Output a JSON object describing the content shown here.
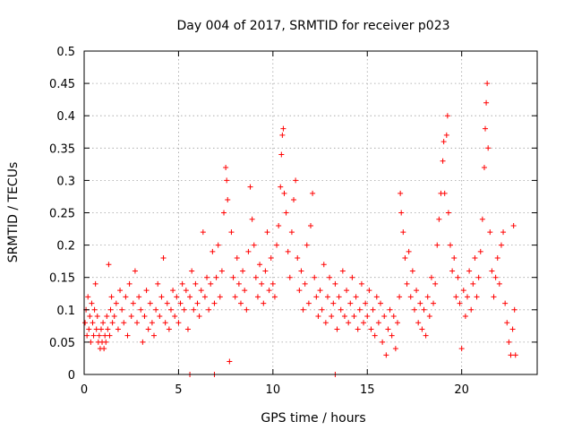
{
  "chart_data": {
    "type": "scatter",
    "title": "Day 004 of 2017, SRMTID for receiver p023",
    "xlabel": "GPS time / hours",
    "ylabel": "SRMTID / TECUs",
    "xlim": [
      0,
      24
    ],
    "ylim": [
      0,
      0.5
    ],
    "xticks": [
      0,
      5,
      10,
      15,
      20
    ],
    "yticks": [
      0,
      0.05,
      0.1,
      0.15,
      0.2,
      0.25,
      0.3,
      0.35,
      0.4,
      0.45,
      0.5
    ],
    "xtick_labels": [
      "0",
      "5",
      "10",
      "15",
      "20"
    ],
    "ytick_labels": [
      "0",
      "0.05",
      "0.1",
      "0.15",
      "0.2",
      "0.25",
      "0.3",
      "0.35",
      "0.4",
      "0.45",
      "0.5"
    ],
    "grid": true,
    "marker": "+",
    "color": "#ff0000",
    "series": [
      {
        "name": "SRMTID",
        "points": [
          [
            0.05,
            0.08
          ],
          [
            0.1,
            0.1
          ],
          [
            0.15,
            0.06
          ],
          [
            0.2,
            0.12
          ],
          [
            0.25,
            0.07
          ],
          [
            0.3,
            0.09
          ],
          [
            0.35,
            0.05
          ],
          [
            0.4,
            0.11
          ],
          [
            0.45,
            0.08
          ],
          [
            0.5,
            0.06
          ],
          [
            0.55,
            0.1
          ],
          [
            0.6,
            0.14
          ],
          [
            0.65,
            0.07
          ],
          [
            0.7,
            0.09
          ],
          [
            0.75,
            0.05
          ],
          [
            0.8,
            0.06
          ],
          [
            0.85,
            0.04
          ],
          [
            0.9,
            0.07
          ],
          [
            0.95,
            0.05
          ],
          [
            1.0,
            0.08
          ],
          [
            1.05,
            0.04
          ],
          [
            1.1,
            0.06
          ],
          [
            1.15,
            0.05
          ],
          [
            1.2,
            0.09
          ],
          [
            1.25,
            0.07
          ],
          [
            1.3,
            0.17
          ],
          [
            1.35,
            0.06
          ],
          [
            1.4,
            0.1
          ],
          [
            1.45,
            0.12
          ],
          [
            1.5,
            0.08
          ],
          [
            1.6,
            0.09
          ],
          [
            1.7,
            0.11
          ],
          [
            1.8,
            0.07
          ],
          [
            1.9,
            0.13
          ],
          [
            2.0,
            0.1
          ],
          [
            2.1,
            0.08
          ],
          [
            2.2,
            0.12
          ],
          [
            2.3,
            0.06
          ],
          [
            2.4,
            0.14
          ],
          [
            2.5,
            0.09
          ],
          [
            2.6,
            0.11
          ],
          [
            2.7,
            0.16
          ],
          [
            2.8,
            0.08
          ],
          [
            2.9,
            0.12
          ],
          [
            3.0,
            0.1
          ],
          [
            3.1,
            0.05
          ],
          [
            3.2,
            0.09
          ],
          [
            3.3,
            0.13
          ],
          [
            3.4,
            0.07
          ],
          [
            3.5,
            0.11
          ],
          [
            3.6,
            0.08
          ],
          [
            3.7,
            0.06
          ],
          [
            3.8,
            0.1
          ],
          [
            3.9,
            0.14
          ],
          [
            4.0,
            0.09
          ],
          [
            4.1,
            0.12
          ],
          [
            4.2,
            0.18
          ],
          [
            4.3,
            0.08
          ],
          [
            4.4,
            0.11
          ],
          [
            4.5,
            0.07
          ],
          [
            4.6,
            0.1
          ],
          [
            4.7,
            0.13
          ],
          [
            4.8,
            0.09
          ],
          [
            4.9,
            0.12
          ],
          [
            5.0,
            0.08
          ],
          [
            5.1,
            0.11
          ],
          [
            5.2,
            0.14
          ],
          [
            5.3,
            0.1
          ],
          [
            5.4,
            0.13
          ],
          [
            5.5,
            0.07
          ],
          [
            5.6,
            0.12
          ],
          [
            5.7,
            0.16
          ],
          [
            5.8,
            0.1
          ],
          [
            5.9,
            0.14
          ],
          [
            6.0,
            0.11
          ],
          [
            6.1,
            0.09
          ],
          [
            6.2,
            0.13
          ],
          [
            6.3,
            0.22
          ],
          [
            6.4,
            0.12
          ],
          [
            6.5,
            0.15
          ],
          [
            6.6,
            0.1
          ],
          [
            6.7,
            0.14
          ],
          [
            6.8,
            0.19
          ],
          [
            6.9,
            0.11
          ],
          [
            7.0,
            0.15
          ],
          [
            7.1,
            0.2
          ],
          [
            7.2,
            0.12
          ],
          [
            7.3,
            0.16
          ],
          [
            7.4,
            0.25
          ],
          [
            7.5,
            0.32
          ],
          [
            7.55,
            0.3
          ],
          [
            7.6,
            0.27
          ],
          [
            7.7,
            0.02
          ],
          [
            7.8,
            0.22
          ],
          [
            7.9,
            0.15
          ],
          [
            8.0,
            0.12
          ],
          [
            8.1,
            0.18
          ],
          [
            8.2,
            0.14
          ],
          [
            8.3,
            0.11
          ],
          [
            8.4,
            0.16
          ],
          [
            8.5,
            0.13
          ],
          [
            8.6,
            0.1
          ],
          [
            8.7,
            0.19
          ],
          [
            8.8,
            0.29
          ],
          [
            8.9,
            0.24
          ],
          [
            9.0,
            0.2
          ],
          [
            9.1,
            0.15
          ],
          [
            9.2,
            0.12
          ],
          [
            9.3,
            0.17
          ],
          [
            9.4,
            0.14
          ],
          [
            9.5,
            0.11
          ],
          [
            9.6,
            0.16
          ],
          [
            9.7,
            0.22
          ],
          [
            9.8,
            0.13
          ],
          [
            9.9,
            0.18
          ],
          [
            10.0,
            0.14
          ],
          [
            10.1,
            0.12
          ],
          [
            10.2,
            0.2
          ],
          [
            10.3,
            0.23
          ],
          [
            10.4,
            0.29
          ],
          [
            10.45,
            0.34
          ],
          [
            10.5,
            0.37
          ],
          [
            10.55,
            0.38
          ],
          [
            10.6,
            0.28
          ],
          [
            10.7,
            0.25
          ],
          [
            10.8,
            0.19
          ],
          [
            10.9,
            0.15
          ],
          [
            11.0,
            0.22
          ],
          [
            11.1,
            0.27
          ],
          [
            11.2,
            0.3
          ],
          [
            11.3,
            0.18
          ],
          [
            11.4,
            0.13
          ],
          [
            11.5,
            0.16
          ],
          [
            11.6,
            0.1
          ],
          [
            11.7,
            0.14
          ],
          [
            11.8,
            0.2
          ],
          [
            11.9,
            0.11
          ],
          [
            12.0,
            0.23
          ],
          [
            12.1,
            0.28
          ],
          [
            12.2,
            0.15
          ],
          [
            12.3,
            0.12
          ],
          [
            12.4,
            0.09
          ],
          [
            12.5,
            0.13
          ],
          [
            12.6,
            0.1
          ],
          [
            12.7,
            0.17
          ],
          [
            12.8,
            0.08
          ],
          [
            12.9,
            0.12
          ],
          [
            13.0,
            0.15
          ],
          [
            13.1,
            0.09
          ],
          [
            13.2,
            0.11
          ],
          [
            13.3,
            0.14
          ],
          [
            13.4,
            0.07
          ],
          [
            13.5,
            0.12
          ],
          [
            13.6,
            0.1
          ],
          [
            13.7,
            0.16
          ],
          [
            13.8,
            0.09
          ],
          [
            13.9,
            0.13
          ],
          [
            14.0,
            0.08
          ],
          [
            14.1,
            0.11
          ],
          [
            14.2,
            0.15
          ],
          [
            14.3,
            0.09
          ],
          [
            14.4,
            0.12
          ],
          [
            14.5,
            0.07
          ],
          [
            14.6,
            0.1
          ],
          [
            14.7,
            0.14
          ],
          [
            14.8,
            0.08
          ],
          [
            14.9,
            0.11
          ],
          [
            15.0,
            0.09
          ],
          [
            15.1,
            0.13
          ],
          [
            15.2,
            0.07
          ],
          [
            15.3,
            0.1
          ],
          [
            15.4,
            0.06
          ],
          [
            15.5,
            0.12
          ],
          [
            15.6,
            0.08
          ],
          [
            15.7,
            0.11
          ],
          [
            15.8,
            0.05
          ],
          [
            15.9,
            0.09
          ],
          [
            16.0,
            0.03
          ],
          [
            16.1,
            0.07
          ],
          [
            16.2,
            0.1
          ],
          [
            16.3,
            0.06
          ],
          [
            16.4,
            0.09
          ],
          [
            16.5,
            0.04
          ],
          [
            16.6,
            0.08
          ],
          [
            16.7,
            0.12
          ],
          [
            16.75,
            0.28
          ],
          [
            16.8,
            0.25
          ],
          [
            16.9,
            0.22
          ],
          [
            17.0,
            0.18
          ],
          [
            17.1,
            0.14
          ],
          [
            17.2,
            0.19
          ],
          [
            17.3,
            0.12
          ],
          [
            17.4,
            0.16
          ],
          [
            17.5,
            0.1
          ],
          [
            17.6,
            0.13
          ],
          [
            17.7,
            0.08
          ],
          [
            17.8,
            0.11
          ],
          [
            17.9,
            0.07
          ],
          [
            18.0,
            0.1
          ],
          [
            18.1,
            0.06
          ],
          [
            18.2,
            0.12
          ],
          [
            18.3,
            0.09
          ],
          [
            18.4,
            0.15
          ],
          [
            18.5,
            0.11
          ],
          [
            18.6,
            0.14
          ],
          [
            18.7,
            0.2
          ],
          [
            18.8,
            0.24
          ],
          [
            18.9,
            0.28
          ],
          [
            19.0,
            0.33
          ],
          [
            19.05,
            0.36
          ],
          [
            19.1,
            0.28
          ],
          [
            19.2,
            0.37
          ],
          [
            19.25,
            0.4
          ],
          [
            19.3,
            0.25
          ],
          [
            19.4,
            0.2
          ],
          [
            19.5,
            0.16
          ],
          [
            19.6,
            0.18
          ],
          [
            19.7,
            0.12
          ],
          [
            19.8,
            0.15
          ],
          [
            19.9,
            0.11
          ],
          [
            20.0,
            0.04
          ],
          [
            20.1,
            0.13
          ],
          [
            20.2,
            0.09
          ],
          [
            20.3,
            0.12
          ],
          [
            20.4,
            0.16
          ],
          [
            20.5,
            0.1
          ],
          [
            20.6,
            0.14
          ],
          [
            20.7,
            0.18
          ],
          [
            20.8,
            0.12
          ],
          [
            20.9,
            0.15
          ],
          [
            21.0,
            0.19
          ],
          [
            21.1,
            0.24
          ],
          [
            21.2,
            0.32
          ],
          [
            21.25,
            0.38
          ],
          [
            21.3,
            0.42
          ],
          [
            21.35,
            0.45
          ],
          [
            21.4,
            0.35
          ],
          [
            21.5,
            0.22
          ],
          [
            21.6,
            0.16
          ],
          [
            21.7,
            0.12
          ],
          [
            21.8,
            0.15
          ],
          [
            21.9,
            0.18
          ],
          [
            22.0,
            0.14
          ],
          [
            22.1,
            0.2
          ],
          [
            22.2,
            0.22
          ],
          [
            22.3,
            0.11
          ],
          [
            22.4,
            0.08
          ],
          [
            22.5,
            0.05
          ],
          [
            22.6,
            0.03
          ],
          [
            22.7,
            0.07
          ],
          [
            22.75,
            0.23
          ],
          [
            22.8,
            0.1
          ],
          [
            22.85,
            0.03
          ],
          [
            5.6,
            0.0
          ],
          [
            6.9,
            0.0
          ],
          [
            13.3,
            0.0
          ]
        ]
      }
    ]
  }
}
